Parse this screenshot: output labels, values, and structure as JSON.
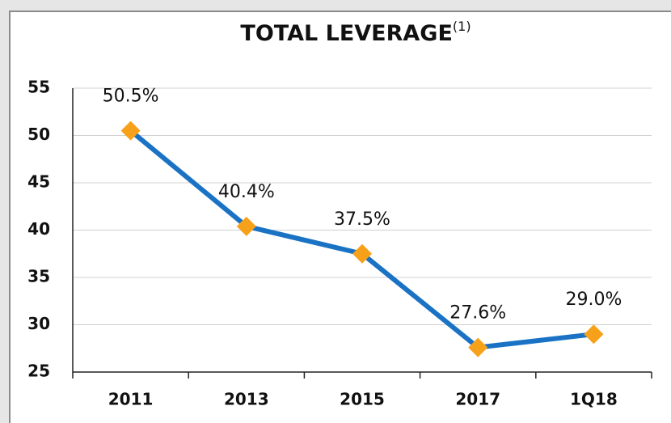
{
  "chart_data": {
    "type": "line",
    "title": "TOTAL LEVERAGE",
    "title_note": "(1)",
    "categories": [
      "2011",
      "2013",
      "2015",
      "2017",
      "1Q18"
    ],
    "values": [
      50.5,
      40.4,
      37.5,
      27.6,
      29.0
    ],
    "value_labels": [
      "50.5%",
      "40.4%",
      "37.5%",
      "27.6%",
      "29.0%"
    ],
    "color": "#1a72c4",
    "marker_color": "#f7a11a",
    "ylim": [
      25,
      55
    ],
    "yticks": [
      25,
      30,
      35,
      40,
      45,
      50,
      55
    ],
    "grid": true
  }
}
